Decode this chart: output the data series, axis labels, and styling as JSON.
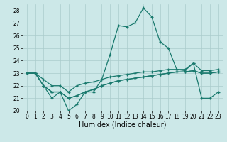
{
  "x": [
    0,
    1,
    2,
    3,
    4,
    5,
    6,
    7,
    8,
    9,
    10,
    11,
    12,
    13,
    14,
    15,
    16,
    17,
    18,
    19,
    20,
    21,
    22,
    23
  ],
  "y_main": [
    23,
    23,
    22,
    21,
    21.5,
    20,
    20.5,
    21.5,
    21.5,
    22.5,
    24.5,
    26.8,
    26.7,
    27.0,
    28.2,
    27.5,
    25.5,
    25.0,
    23.3,
    23.2,
    23.8,
    21.0,
    21.0,
    21.5
  ],
  "y_upper_flat": [
    23,
    23,
    22.5,
    22,
    22,
    21.5,
    22,
    22.2,
    22.3,
    22.5,
    22.7,
    22.8,
    22.9,
    23.0,
    23.1,
    23.1,
    23.2,
    23.3,
    23.3,
    23.3,
    23.8,
    23.2,
    23.2,
    23.3
  ],
  "y_lower_flat1": [
    23,
    23,
    22,
    21.5,
    21.5,
    21,
    21.2,
    21.5,
    21.7,
    22.0,
    22.2,
    22.4,
    22.5,
    22.6,
    22.7,
    22.8,
    22.9,
    23.0,
    23.1,
    23.1,
    23.2,
    23.0,
    23.0,
    23.1
  ],
  "y_lower_flat2": [
    23,
    23,
    22,
    21.5,
    21.5,
    21,
    21.2,
    21.5,
    21.7,
    22.0,
    22.2,
    22.4,
    22.5,
    22.6,
    22.7,
    22.8,
    22.9,
    23.0,
    23.1,
    23.1,
    23.2,
    23.0,
    23.0,
    23.1
  ],
  "bg_color": "#cce8e8",
  "line_color": "#1a7a6e",
  "grid_color": "#aacccc",
  "xlabel": "Humidex (Indice chaleur)",
  "ylim_min": 20,
  "ylim_max": 28.5,
  "xlim_min": -0.5,
  "xlim_max": 23.5,
  "yticks": [
    20,
    21,
    22,
    23,
    24,
    25,
    26,
    27,
    28
  ],
  "xticks": [
    0,
    1,
    2,
    3,
    4,
    5,
    6,
    7,
    8,
    9,
    10,
    11,
    12,
    13,
    14,
    15,
    16,
    17,
    18,
    19,
    20,
    21,
    22,
    23
  ],
  "tick_fontsize": 5.5,
  "xlabel_fontsize": 7
}
